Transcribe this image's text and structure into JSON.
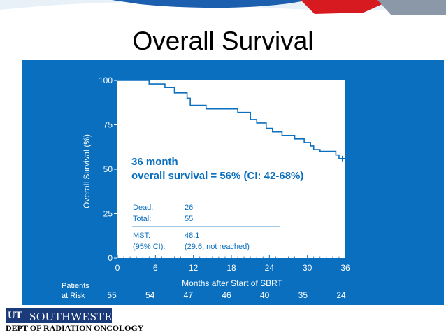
{
  "slide": {
    "title": "Overall Survival",
    "logo_text": "SOUTHWESTERN",
    "logo_mark": "UT",
    "department": "DEPT OF RADIATION ONCOLOGY"
  },
  "colors": {
    "panel": "#0a6fbf",
    "plot_bg": "#ffffff",
    "curve": "#0a6fbf",
    "axis_text": "#ffffff",
    "logo_bg": "#1a3a7a",
    "banner_red": "#d71920"
  },
  "chart_data": {
    "type": "line",
    "subtype": "kaplan-meier step",
    "ylabel": "Overall Survival (%)",
    "xlabel": "Months after Start of SBRT",
    "xlim": [
      0,
      36
    ],
    "ylim": [
      0,
      100
    ],
    "x_ticks": [
      "0",
      "6",
      "12",
      "18",
      "24",
      "30",
      "36"
    ],
    "y_ticks": [
      "0",
      "25",
      "50",
      "75",
      "100"
    ],
    "grid": false,
    "series": [
      {
        "steps": [
          [
            0,
            100
          ],
          [
            5,
            98
          ],
          [
            7.5,
            96
          ],
          [
            9,
            93
          ],
          [
            11,
            90
          ],
          [
            11.5,
            86
          ],
          [
            14,
            84
          ],
          [
            19,
            82
          ],
          [
            21,
            78
          ],
          [
            22,
            76
          ],
          [
            23.5,
            73
          ],
          [
            24.5,
            71
          ],
          [
            26,
            69
          ],
          [
            28,
            67
          ],
          [
            29.5,
            65
          ],
          [
            30.5,
            63
          ],
          [
            31,
            61
          ],
          [
            32,
            60
          ],
          [
            34.5,
            58
          ],
          [
            35,
            56
          ],
          [
            36,
            56
          ]
        ],
        "censor_times": [
          35.5
        ]
      }
    ],
    "annotation": {
      "line1": "36 month",
      "line2": "overall survival = 56% (CI: 42-68%)"
    },
    "stats": {
      "dead_label": "Dead:",
      "dead_value": "26",
      "total_label": "Total:",
      "total_value": "55",
      "mst_label": "MST:",
      "mst_value": "48.1",
      "ci_label": "(95% CI):",
      "ci_value": "(29.6, not reached)"
    },
    "at_risk": {
      "label_line1": "Patients",
      "label_line2": "at Risk",
      "values": [
        "55",
        "54",
        "47",
        "46",
        "40",
        "35",
        "24"
      ]
    }
  }
}
